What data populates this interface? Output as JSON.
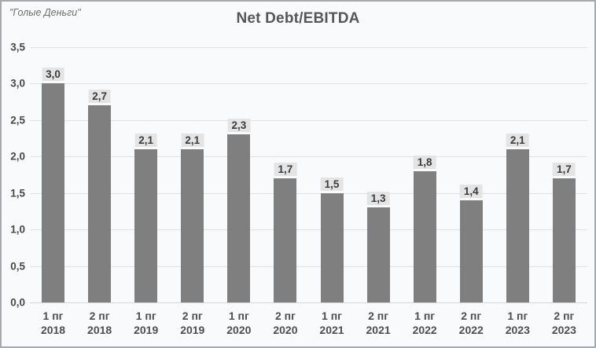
{
  "watermark": "\"Голые Деньги\"",
  "colors": {
    "background": "#f9fafb",
    "frame_border": "#a6aaaf",
    "bar": "#7f7f7f",
    "gridline": "#dfe2e6",
    "title_text": "#565656",
    "axis_text": "#474747",
    "value_label_bg": "#e4e4e4",
    "value_label_text": "#3b3b3b",
    "watermark_text": "#6d6d6d"
  },
  "chart_data": {
    "type": "bar",
    "title": "Net Debt/EBITDA",
    "xlabel": "",
    "ylabel": "",
    "categories": [
      "1 пг\n2018",
      "2 пг\n2018",
      "1 пг\n2019",
      "2 пг\n2019",
      "1 пг\n2020",
      "2 пг\n2020",
      "1 пг\n2021",
      "2 пг\n2021",
      "1 пг\n2022",
      "2 пг\n2022",
      "1 пг\n2023",
      "2 пг\n2023"
    ],
    "values": [
      3.0,
      2.7,
      2.1,
      2.1,
      2.3,
      1.7,
      1.5,
      1.3,
      1.8,
      1.4,
      2.1,
      1.7
    ],
    "value_labels": [
      "3,0",
      "2,7",
      "2,1",
      "2,1",
      "2,3",
      "1,7",
      "1,5",
      "1,3",
      "1,8",
      "1,4",
      "2,1",
      "1,7"
    ],
    "ylim": [
      0,
      3.5
    ],
    "yticks": {
      "values": [
        0,
        0.5,
        1.0,
        1.5,
        2.0,
        2.5,
        3.0,
        3.5
      ],
      "labels": [
        "0,0",
        "0,5",
        "1,0",
        "1,5",
        "2,0",
        "2,5",
        "3,0",
        "3,5"
      ]
    },
    "grid": "horizontal",
    "legend": "none",
    "bar_color": "#7f7f7f",
    "data_labels": "above bars, comma decimal, light gray chip"
  }
}
